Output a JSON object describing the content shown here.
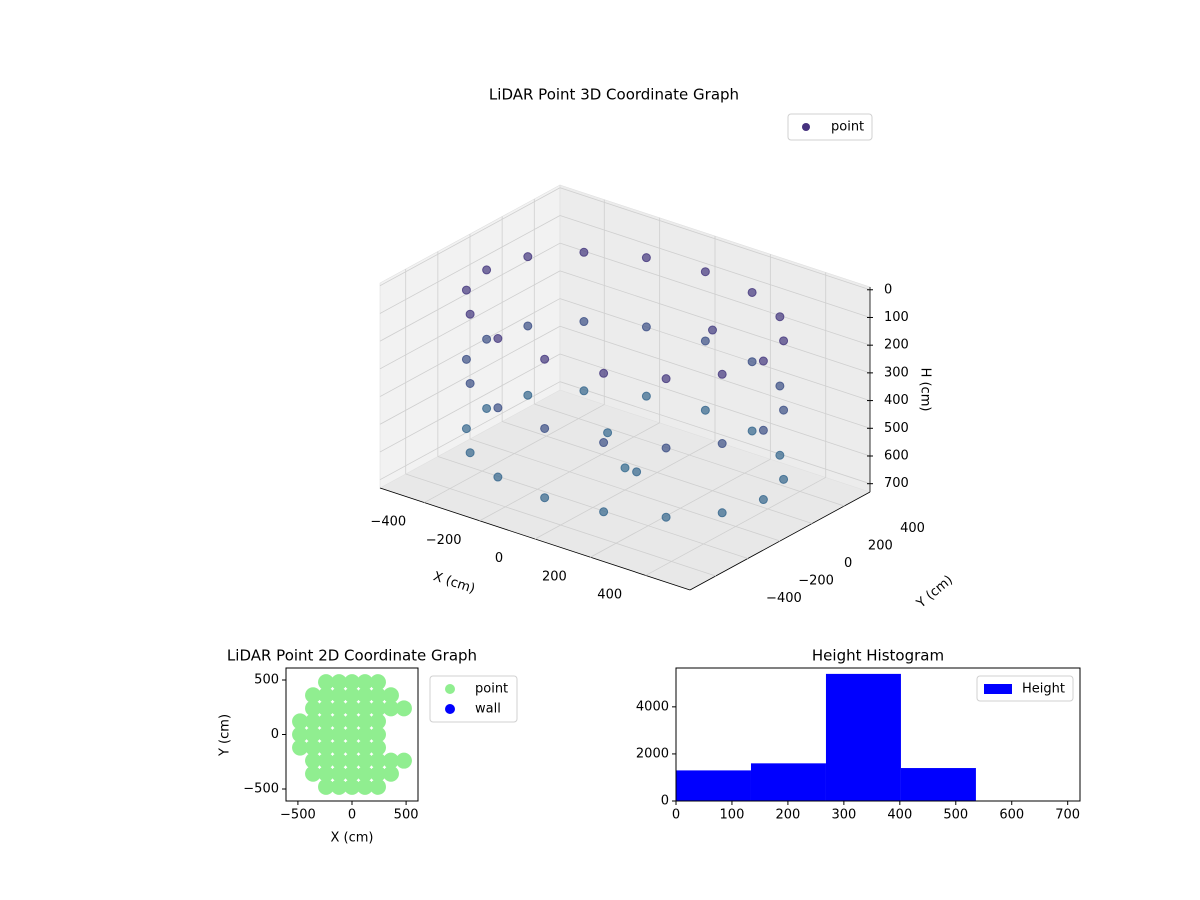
{
  "chart_data": [
    {
      "type": "scatter3d",
      "title": "LiDAR Point 3D Coordinate Graph",
      "xlabel": "X (cm)",
      "ylabel": "Y (cm)",
      "zlabel": "H (cm)",
      "xlim": [
        -560,
        560
      ],
      "ylim": [
        -560,
        560
      ],
      "zlim": [
        730,
        -10
      ],
      "xticks": [
        {
          "value": -400,
          "label": "−400"
        },
        {
          "value": -200,
          "label": "−200"
        },
        0,
        200,
        400
      ],
      "yticks": [
        {
          "value": -400,
          "label": "−400"
        },
        {
          "value": -200,
          "label": "−200"
        },
        0,
        200,
        400
      ],
      "zticks": [
        0,
        100,
        200,
        300,
        400,
        500,
        600,
        700
      ],
      "legend": "upper right",
      "colormap": [
        "#472c7a",
        "#2f7190"
      ],
      "series": [
        {
          "name": "point",
          "color": "#46327e",
          "x": [
            500,
            462,
            354,
            191,
            0,
            -191,
            -354,
            -462,
            -500,
            -462,
            -354,
            -191,
            0,
            191,
            354,
            462,
            500,
            462,
            354,
            191,
            0,
            -191,
            -354,
            -462,
            -500,
            -462,
            -354,
            -191,
            0,
            191,
            354,
            462,
            500,
            462,
            354,
            191,
            0,
            -191,
            -354,
            -462,
            -500,
            -462,
            -354,
            -191,
            0,
            191,
            354,
            462,
            0,
            100,
            -150,
            200
          ],
          "y": [
            0,
            191,
            354,
            462,
            500,
            462,
            354,
            191,
            0,
            -191,
            -354,
            -462,
            -500,
            -462,
            -354,
            -191,
            0,
            191,
            354,
            462,
            500,
            462,
            354,
            191,
            0,
            -191,
            -354,
            -462,
            -500,
            -462,
            -354,
            -191,
            0,
            191,
            354,
            462,
            500,
            462,
            354,
            191,
            0,
            -191,
            -354,
            -462,
            -500,
            -462,
            -354,
            -191,
            0,
            -100,
            150,
            200
          ],
          "z": [
            100,
            100,
            100,
            100,
            100,
            100,
            100,
            100,
            100,
            100,
            100,
            100,
            100,
            100,
            100,
            100,
            350,
            350,
            350,
            350,
            350,
            350,
            350,
            350,
            350,
            350,
            350,
            350,
            350,
            350,
            350,
            350,
            600,
            600,
            600,
            600,
            600,
            600,
            600,
            600,
            600,
            600,
            600,
            600,
            600,
            600,
            600,
            600,
            650,
            600,
            620,
            150
          ]
        }
      ]
    },
    {
      "type": "scatter",
      "title": "LiDAR Point 2D Coordinate Graph",
      "xlabel": "X (cm)",
      "ylabel": "Y (cm)",
      "xlim": [
        -610,
        610
      ],
      "ylim": [
        -610,
        610
      ],
      "xticks": [
        {
          "value": -500,
          "label": "−500"
        },
        0,
        500
      ],
      "yticks": [
        {
          "value": -500,
          "label": "−500"
        },
        0,
        500
      ],
      "legend": "outside right",
      "series": [
        {
          "name": "point",
          "color": "#90ee90",
          "x": [
            -240,
            -120,
            0,
            120,
            240,
            -360,
            -240,
            -120,
            0,
            120,
            240,
            360,
            -360,
            -240,
            -120,
            0,
            120,
            240,
            360,
            480,
            -480,
            -360,
            -240,
            -120,
            0,
            120,
            240,
            -480,
            -360,
            -240,
            -120,
            0,
            120,
            240,
            -480,
            -360,
            -240,
            -120,
            0,
            120,
            240,
            -360,
            -240,
            -120,
            0,
            120,
            240,
            360,
            480,
            -360,
            -240,
            -120,
            0,
            120,
            240,
            360,
            -240,
            -120,
            0,
            120,
            240
          ],
          "y": [
            480,
            480,
            480,
            480,
            480,
            360,
            360,
            360,
            360,
            360,
            360,
            360,
            240,
            240,
            240,
            240,
            240,
            240,
            240,
            240,
            120,
            120,
            120,
            120,
            120,
            120,
            120,
            0,
            0,
            0,
            0,
            0,
            0,
            0,
            -120,
            -120,
            -120,
            -120,
            -120,
            -120,
            -120,
            -240,
            -240,
            -240,
            -240,
            -240,
            -240,
            -240,
            -240,
            -360,
            -360,
            -360,
            -360,
            -360,
            -360,
            -360,
            -480,
            -480,
            -480,
            -480,
            -480
          ]
        },
        {
          "name": "wall",
          "color": "#0000ff",
          "x": [],
          "y": []
        }
      ]
    },
    {
      "type": "histogram",
      "title": "Height Histogram",
      "name": "Height",
      "color": "#0000ff",
      "bins": [
        0,
        134,
        268,
        402,
        536,
        670
      ],
      "values": [
        1300,
        1600,
        5400,
        1400,
        0
      ],
      "xlim": [
        0,
        722
      ],
      "ylim": [
        0,
        5650
      ],
      "xticks": [
        0,
        100,
        200,
        300,
        400,
        500,
        600,
        700
      ],
      "yticks": [
        0,
        2000,
        4000
      ],
      "legend": "upper right"
    }
  ]
}
